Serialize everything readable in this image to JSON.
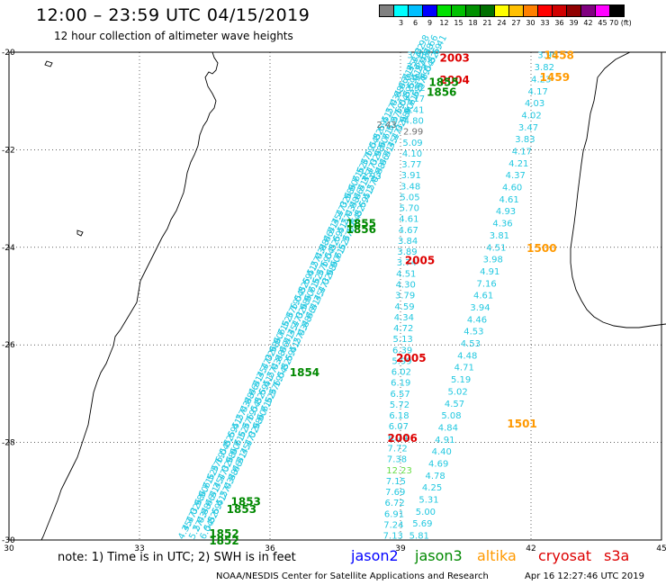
{
  "title": "12:00 – 23:59 UTC 04/15/2019",
  "subtitle": "12 hour collection of altimeter wave heights",
  "colorbar": {
    "labels": [
      "",
      "3",
      "6",
      "9",
      "12",
      "15",
      "18",
      "21",
      "24",
      "27",
      "30",
      "33",
      "36",
      "39",
      "42",
      "45",
      "70 (ft)"
    ],
    "colors": [
      "#808080",
      "#00ffff",
      "#00bfff",
      "#0000ff",
      "#00e000",
      "#00c000",
      "#009000",
      "#007000",
      "#ffff00",
      "#ffc000",
      "#ff8000",
      "#ff0000",
      "#d00000",
      "#900000",
      "#800080",
      "#ff00ff",
      "#000000"
    ]
  },
  "map": {
    "lon_min": 30,
    "lon_max": 45,
    "lat_min": -30,
    "lat_max": -20,
    "lon_ticks": [
      "30",
      "33",
      "36",
      "39",
      "42",
      "45"
    ],
    "lat_ticks": [
      "-20",
      "-22",
      "-24",
      "-26",
      "-28",
      "-30"
    ],
    "grid_lons": [
      33,
      36,
      39,
      42
    ],
    "grid_lats": [
      -22,
      -24,
      -26,
      -28
    ]
  },
  "colors": {
    "wave": "#22c8e0",
    "jason2": "#0000ff",
    "jason3": "#008800",
    "altika": "#ff9900",
    "cryosat": "#dd0000",
    "s3a": "#dd0000",
    "light_green": "#66dd44",
    "gray": "#707070"
  },
  "track_c": {
    "values": [
      "3.98",
      "3.84",
      "3.98",
      "3.92",
      "4.17",
      "4.41",
      "4.80",
      "2.99",
      "5.09",
      "4.10",
      "3.77",
      "3.91",
      "3.48",
      "5.05",
      "5.70",
      "4.61",
      "4.67",
      "3.84",
      "3.89",
      "3.74",
      "4.51",
      "4.30",
      "3.79",
      "4.59",
      "4.34",
      "4.72",
      "5.13",
      "6.39",
      "5.99",
      "6.02",
      "6.19",
      "6.57",
      "5.72",
      "6.18",
      "6.07",
      "6.74",
      "7.72",
      "7.38",
      "12.23",
      "7.15",
      "7.69",
      "6.72",
      "6.91",
      "7.24",
      "7.13"
    ],
    "special": {
      "7": "gray",
      "38": "light_green"
    }
  },
  "track_d": {
    "values": [
      "3.96",
      "3.82",
      "4.23",
      "4.17",
      "4.03",
      "4.02",
      "3.47",
      "3.83",
      "4.17",
      "4.21",
      "4.37",
      "4.60",
      "4.61",
      "4.93",
      "4.36",
      "3.81",
      "4.51",
      "3.98",
      "4.91",
      "7.16",
      "4.61",
      "3.94",
      "4.46",
      "4.53",
      "4.53",
      "4.48",
      "4.71",
      "5.19",
      "5.02",
      "4.57",
      "5.08",
      "4.84",
      "4.91",
      "4.40",
      "4.69",
      "4.78",
      "4.25",
      "5.31",
      "5.00",
      "5.69",
      "5.81"
    ]
  },
  "track_b_extra": [
    {
      "text": "2.43",
      "color": "gray"
    },
    {
      "text": "2.93",
      "color": "wave"
    }
  ],
  "time_labels": [
    {
      "text": "2003",
      "lon": 39.9,
      "lat": -20.1,
      "color": "cryosat"
    },
    {
      "text": "2004",
      "lon": 39.9,
      "lat": -20.55,
      "color": "cryosat"
    },
    {
      "text": "1855",
      "lon": 39.65,
      "lat": -20.6,
      "color": "jason3"
    },
    {
      "text": "1856",
      "lon": 39.6,
      "lat": -20.8,
      "color": "jason3"
    },
    {
      "text": "1855",
      "lon": 37.75,
      "lat": -23.5,
      "color": "jason3"
    },
    {
      "text": "1856",
      "lon": 37.75,
      "lat": -23.62,
      "color": "jason3"
    },
    {
      "text": "2005",
      "lon": 39.1,
      "lat": -24.25,
      "color": "cryosat"
    },
    {
      "text": "2005",
      "lon": 38.9,
      "lat": -26.25,
      "color": "cryosat"
    },
    {
      "text": "1854",
      "lon": 36.45,
      "lat": -26.55,
      "color": "jason3"
    },
    {
      "text": "2006",
      "lon": 38.7,
      "lat": -27.9,
      "color": "cryosat"
    },
    {
      "text": "1853",
      "lon": 35.1,
      "lat": -29.2,
      "color": "jason3"
    },
    {
      "text": "1853",
      "lon": 35.0,
      "lat": -29.35,
      "color": "jason3"
    },
    {
      "text": "1852",
      "lon": 34.6,
      "lat": -29.85,
      "color": "jason3"
    },
    {
      "text": "1852",
      "lon": 34.6,
      "lat": -30.0,
      "color": "jason3"
    },
    {
      "text": "1458",
      "lon": 42.3,
      "lat": -20.05,
      "color": "altika"
    },
    {
      "text": "1459",
      "lon": 42.2,
      "lat": -20.5,
      "color": "altika"
    },
    {
      "text": "1500",
      "lon": 41.9,
      "lat": -24.0,
      "color": "altika"
    },
    {
      "text": "1501",
      "lon": 41.45,
      "lat": -27.6,
      "color": "altika"
    }
  ],
  "note": "note: 1) Time is in UTC; 2) SWH is in feet",
  "legend": [
    {
      "text": "jason2",
      "color": "jason2"
    },
    {
      "text": "jason3",
      "color": "jason3"
    },
    {
      "text": "altika",
      "color": "altika"
    },
    {
      "text": "cryosat",
      "color": "cryosat"
    },
    {
      "text": "s3a",
      "color": "s3a"
    }
  ],
  "footer": "NOAA/NESDIS Center for Satellite Applications and Research",
  "footer_timestamp": "Apr 16 12:27:46 UTC 2019"
}
